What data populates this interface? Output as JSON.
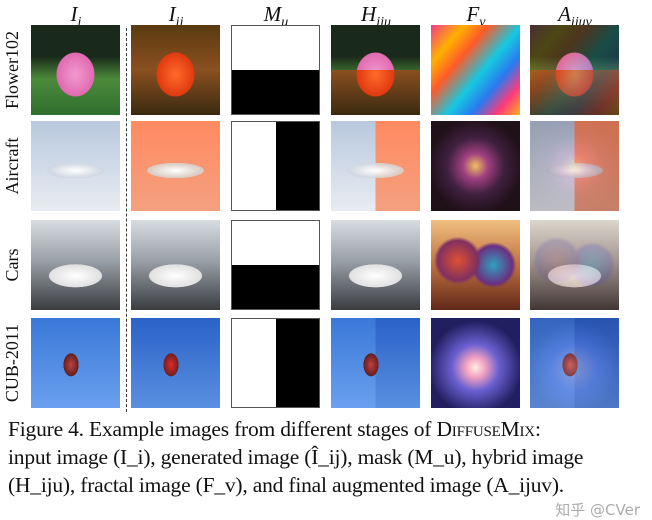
{
  "columns": [
    {
      "base": "I",
      "sub": "i"
    },
    {
      "base": "I",
      "sub": "ij"
    },
    {
      "base": "M",
      "sub": "u"
    },
    {
      "base": "H",
      "sub": "iju"
    },
    {
      "base": "F",
      "sub": "v"
    },
    {
      "base": "A",
      "sub": "ijuv"
    }
  ],
  "rows": [
    {
      "label": "Flower102",
      "mask": "horizontal"
    },
    {
      "label": "Aircraft",
      "mask": "vertical"
    },
    {
      "label": "Cars",
      "mask": "horizontal"
    },
    {
      "label": "CUB-2011",
      "mask": "vertical"
    }
  ],
  "caption": {
    "line1_prefix": "Figure 4. Example images from different stages of ",
    "method": "DiffuseMix",
    "line1_suffix": ":",
    "line2": "input image (I_i), generated image (Î_ij), mask (M_u), hybrid image",
    "line3": "(H_iju), fractal image (F_v), and final augmented image (A_ijuv)."
  },
  "watermark": "知乎 @CVer"
}
